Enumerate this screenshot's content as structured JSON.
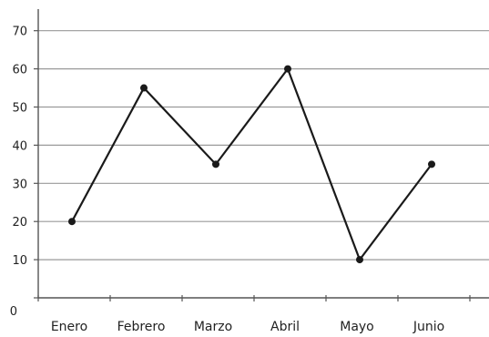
{
  "chart_data": {
    "type": "line",
    "title": "",
    "xlabel": "",
    "ylabel": "",
    "categories": [
      "Enero",
      "Febrero",
      "Marzo",
      "Abril",
      "Mayo",
      "Junio"
    ],
    "series": [
      {
        "values": [
          20,
          55,
          35,
          60,
          10,
          35
        ]
      }
    ],
    "ylim": [
      0,
      70
    ],
    "y_ticks": [
      0,
      10,
      20,
      30,
      40,
      50,
      60,
      70
    ],
    "y_tick_labels": [
      "0",
      "10",
      "20",
      "30",
      "40",
      "50",
      "60",
      "70"
    ],
    "grid": true,
    "legend": "none",
    "colors": {
      "line": "#1a1a1a",
      "grid": "#9a9a9a",
      "axis": "#555555"
    }
  }
}
